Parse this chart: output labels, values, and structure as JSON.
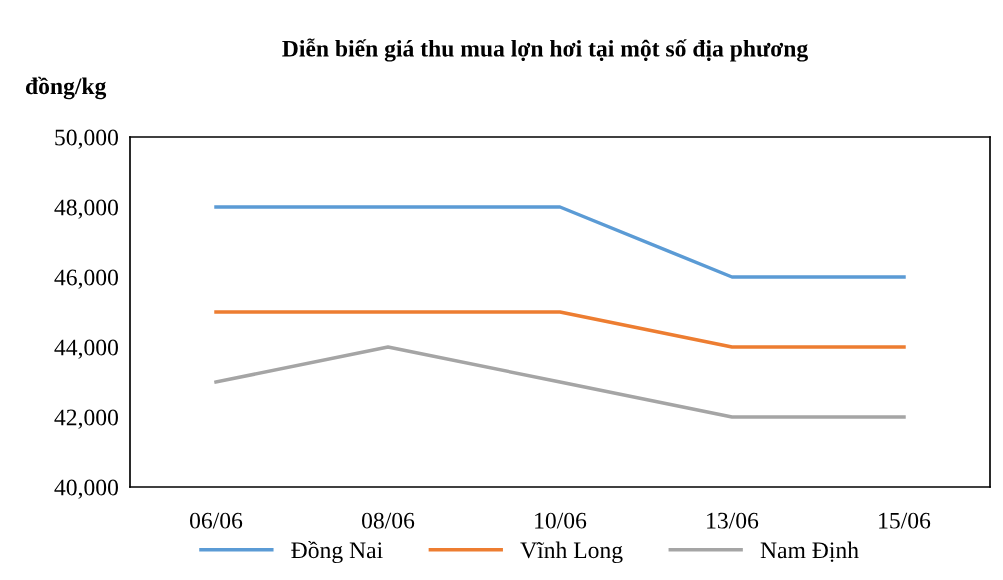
{
  "chart_data": {
    "type": "line",
    "title": "Diễn biến giá thu mua lợn hơi tại một số địa phương",
    "ylabel": "đồng/kg",
    "categories": [
      "06/06",
      "08/06",
      "10/06",
      "13/06",
      "15/06"
    ],
    "series": [
      {
        "name": "Đồng Nai",
        "color": "#5b9bd5",
        "values": [
          48000,
          48000,
          48000,
          46000,
          46000
        ]
      },
      {
        "name": "Vĩnh Long",
        "color": "#ed7d31",
        "values": [
          45000,
          45000,
          45000,
          44000,
          44000
        ]
      },
      {
        "name": "Nam Định",
        "color": "#a5a5a5",
        "values": [
          43000,
          44000,
          43000,
          42000,
          42000
        ]
      }
    ],
    "ylim": [
      40000,
      50000
    ],
    "yticks": [
      {
        "value": 40000,
        "label": "40,000"
      },
      {
        "value": 42000,
        "label": "42,000"
      },
      {
        "value": 44000,
        "label": "44,000"
      },
      {
        "value": 46000,
        "label": "46,000"
      },
      {
        "value": 48000,
        "label": "48,000"
      },
      {
        "value": 50000,
        "label": "50,000"
      }
    ],
    "grid": false,
    "legend": "bottom",
    "marker": "none",
    "line_style": "solid"
  }
}
